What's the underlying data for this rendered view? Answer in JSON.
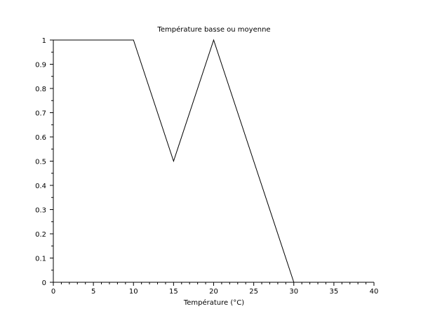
{
  "chart_data": {
    "type": "line",
    "title": "Température basse ou moyenne",
    "xlabel": "Température (°C)",
    "ylabel": "",
    "xlim": [
      0,
      40
    ],
    "ylim": [
      0,
      1
    ],
    "x_ticks": [
      "0",
      "5",
      "10",
      "15",
      "20",
      "25",
      "30",
      "35",
      "40"
    ],
    "y_ticks": [
      "0",
      "0.1",
      "0.2",
      "0.3",
      "0.4",
      "0.5",
      "0.6",
      "0.7",
      "0.8",
      "0.9",
      "1"
    ],
    "grid": false,
    "legend": "none",
    "series": [
      {
        "color": "#000000",
        "x": [
          0,
          10,
          15,
          20,
          30
        ],
        "y": [
          1,
          1,
          0.5,
          1,
          0
        ]
      }
    ]
  }
}
